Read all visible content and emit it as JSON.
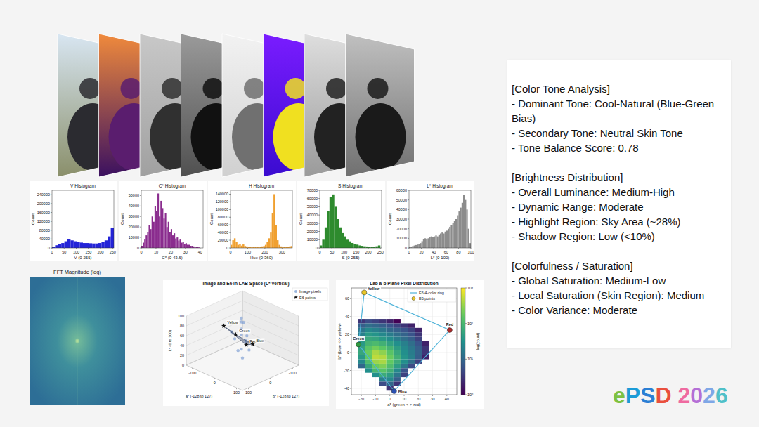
{
  "chart_data": [
    {
      "type": "histogram",
      "title": "V Histogram",
      "x_label": "V (0-255)",
      "y_label": "Count",
      "color": "#2424d8",
      "bins": [
        0,
        12.75,
        25.5,
        38.25,
        51,
        63.75,
        76.5,
        89.25,
        102,
        114.75,
        127.5,
        140.25,
        153,
        165.75,
        178.5,
        191.25,
        204,
        216.75,
        229.5,
        242.25,
        255
      ],
      "values": [
        4000,
        12000,
        18000,
        22000,
        30000,
        38000,
        34000,
        30000,
        26000,
        24000,
        22000,
        22000,
        21000,
        20000,
        20000,
        22000,
        26000,
        34000,
        52000,
        92000
      ],
      "xlim": [
        0,
        255
      ],
      "xticks": [
        0,
        50,
        100,
        150,
        200,
        250
      ],
      "ylim": [
        0,
        260000
      ],
      "yticks": [
        0,
        40000,
        80000,
        120000,
        160000,
        200000,
        240000
      ]
    },
    {
      "type": "histogram",
      "title": "C* Histogram",
      "x_label": "C* (0-43.6)",
      "y_label": "Count",
      "color": "#8a2c8e",
      "bins": [
        0,
        1,
        2,
        3,
        4,
        5,
        6,
        7,
        8,
        9,
        10,
        11,
        12,
        13,
        14,
        15,
        16,
        17,
        18,
        19,
        20,
        21,
        22,
        23,
        24,
        25,
        26,
        27,
        28,
        29,
        30,
        31,
        32,
        33,
        34,
        35,
        36,
        37,
        38,
        39,
        40
      ],
      "values": [
        2000,
        5000,
        8000,
        12000,
        15000,
        22000,
        18000,
        30000,
        25000,
        40000,
        35000,
        52000,
        30000,
        45000,
        38000,
        28000,
        33000,
        20000,
        25000,
        15000,
        18000,
        12000,
        14000,
        9000,
        10000,
        7000,
        8000,
        5000,
        6000,
        4000,
        4500,
        3000,
        3000,
        2000,
        2000,
        1500,
        1200,
        1000,
        800,
        500
      ],
      "xlim": [
        0,
        42
      ],
      "xticks": [
        0,
        10,
        20,
        30,
        40
      ],
      "ylim": [
        0,
        55000
      ],
      "yticks": [
        0,
        10000,
        20000,
        30000,
        40000,
        50000
      ]
    },
    {
      "type": "histogram",
      "title": "H Histogram",
      "x_label": "Hue (0-360)",
      "y_label": "Count",
      "color": "#f0a030",
      "bins": [
        0,
        10,
        20,
        30,
        40,
        50,
        60,
        70,
        80,
        90,
        100,
        110,
        120,
        130,
        140,
        150,
        160,
        170,
        180,
        190,
        200,
        210,
        220,
        230,
        240,
        250,
        260,
        270,
        280,
        290,
        300,
        310,
        320,
        330,
        340,
        350,
        360
      ],
      "values": [
        8000,
        20000,
        25000,
        15000,
        8000,
        10000,
        6000,
        9000,
        5000,
        4000,
        3000,
        3000,
        2000,
        2000,
        2000,
        3000,
        2000,
        3000,
        4000,
        5000,
        8000,
        15000,
        25000,
        40000,
        90000,
        140000,
        60000,
        20000,
        8000,
        4000,
        3000,
        3000,
        2000,
        3000,
        4000,
        5000
      ],
      "xlim": [
        0,
        360
      ],
      "xticks": [
        0,
        100,
        200,
        300
      ],
      "ylim": [
        0,
        150000
      ],
      "yticks": [
        0,
        20000,
        40000,
        60000,
        80000,
        100000,
        120000,
        140000
      ]
    },
    {
      "type": "histogram",
      "title": "S Histogram",
      "x_label": "S (0-255)",
      "y_label": "Count",
      "color": "#2e8b2e",
      "bins": [
        0,
        10,
        20,
        30,
        40,
        50,
        60,
        70,
        80,
        90,
        100,
        110,
        120,
        130,
        140,
        150,
        160,
        170,
        180,
        190,
        200,
        210,
        220,
        230,
        240,
        250
      ],
      "values": [
        3000,
        10000,
        25000,
        45000,
        62000,
        65000,
        50000,
        35000,
        25000,
        18000,
        14000,
        10000,
        8000,
        6000,
        5000,
        4000,
        3000,
        2500,
        2000,
        1800,
        1500,
        1200,
        1000,
        2000,
        3000
      ],
      "xlim": [
        0,
        255
      ],
      "xticks": [
        0,
        50,
        100,
        150,
        200,
        250
      ],
      "ylim": [
        0,
        70000
      ],
      "yticks": [
        0,
        10000,
        20000,
        30000,
        40000,
        50000,
        60000,
        70000
      ]
    },
    {
      "type": "histogram",
      "title": "L* Histogram",
      "x_label": "L* (0-100)",
      "y_label": "Count",
      "color": "#8c8c8c",
      "bins": [
        0,
        2.5,
        5,
        7.5,
        10,
        12.5,
        15,
        17.5,
        20,
        22.5,
        25,
        27.5,
        30,
        32.5,
        35,
        37.5,
        40,
        42.5,
        45,
        47.5,
        50,
        52.5,
        55,
        57.5,
        60,
        62.5,
        65,
        67.5,
        70,
        72.5,
        75,
        77.5,
        80,
        82.5,
        85,
        87.5,
        90,
        92.5,
        95,
        97.5,
        100
      ],
      "values": [
        1000,
        1500,
        2000,
        2500,
        3000,
        3500,
        4000,
        5000,
        7000,
        9000,
        10000,
        9000,
        10000,
        11000,
        12000,
        11000,
        12000,
        13000,
        12000,
        14000,
        15000,
        16000,
        15000,
        17000,
        18000,
        20000,
        22000,
        24000,
        26000,
        28000,
        30000,
        34000,
        38000,
        42000,
        47000,
        55000,
        50000,
        40000,
        20000,
        5000
      ],
      "xlim": [
        0,
        100
      ],
      "xticks": [
        0,
        20,
        40,
        60,
        80,
        100
      ],
      "ylim": [
        0,
        60000
      ],
      "yticks": [
        0,
        10000,
        20000,
        30000,
        40000,
        50000,
        60000
      ]
    },
    {
      "type": "image",
      "title": "FFT Magnitude (log)"
    },
    {
      "type": "scatter3d",
      "title": "Image and E6 in LAB Space (L* Vertical)",
      "x_label": "a* (-128 to 127)",
      "y_label": "b* (-128 to 127)",
      "z_label": "L* (0 to 100)",
      "xlim": [
        -128,
        127
      ],
      "ylim": [
        -128,
        127
      ],
      "zlim": [
        0,
        100
      ],
      "xticks": [
        -100,
        0,
        100
      ],
      "yticks": [
        -100,
        0,
        100
      ],
      "zticks": [
        0,
        20,
        40,
        60,
        80,
        100
      ],
      "legend": "upper right",
      "series": [
        {
          "name": "Image pixels",
          "color": "#6f95d0",
          "marker": "circle",
          "x": [
            -5,
            -10,
            0,
            5,
            -15,
            10,
            -5,
            15,
            -10,
            0,
            20,
            -20,
            5,
            0
          ],
          "y": [
            0,
            -5,
            5,
            10,
            20,
            -10,
            -20,
            20,
            10,
            -30,
            5,
            30,
            0,
            0
          ],
          "z": [
            95,
            85,
            75,
            65,
            55,
            60,
            45,
            40,
            30,
            25,
            50,
            70,
            88,
            15
          ]
        },
        {
          "name": "E6 points",
          "color": "#111111",
          "marker": "star",
          "x": [
            -18,
            42,
            3,
            -22
          ],
          "y": [
            67,
            25,
            -43,
            9
          ],
          "z": [
            90,
            55,
            35,
            60
          ],
          "labels": [
            "Yellow",
            "Red",
            "Blue",
            "Green"
          ]
        }
      ]
    },
    {
      "type": "scatter",
      "title": "Lab a-b Plane Pixel Distribution",
      "x_label": "a* (green <-> red)",
      "y_label": "b* (blue <-> yellow)",
      "xlim": [
        -27,
        47
      ],
      "xticks": [
        -20,
        -10,
        0,
        10,
        20,
        30,
        40
      ],
      "ylim": [
        -47,
        72
      ],
      "yticks": [
        -40,
        -20,
        0,
        20,
        40,
        60
      ],
      "legend": "upper right",
      "series": [
        {
          "name": "E6 4-color ring",
          "type": "line",
          "color": "#4fb3d9",
          "line_style": "solid",
          "x": [
            -18,
            42,
            3,
            -22,
            -18
          ],
          "y": [
            67,
            25,
            -43,
            9,
            67
          ]
        },
        {
          "name": "E6 points",
          "type": "scatter",
          "marker": "circle",
          "colors": [
            "#e8c72a",
            "#b02a2a",
            "#2a4fb0",
            "#2e9a3e"
          ],
          "x": [
            -18,
            42,
            3,
            -22
          ],
          "y": [
            67,
            25,
            -43,
            9
          ],
          "labels": [
            "Yellow",
            "Red",
            "Blue",
            "Green"
          ]
        }
      ],
      "pixels": {
        "x": [
          -20,
          -15,
          -10,
          -5,
          0,
          5,
          -20,
          -15,
          -10,
          -5,
          0,
          5,
          10,
          15,
          -20,
          -15,
          -10,
          -5,
          0,
          5,
          10,
          15,
          20,
          -20,
          -15,
          -10,
          -5,
          0,
          5,
          10,
          15,
          20,
          -20,
          -15,
          -10,
          -5,
          0,
          5,
          10,
          15,
          20,
          -20,
          -15,
          -10,
          -5,
          0,
          5,
          10,
          15,
          20,
          25,
          -20,
          -15,
          -10,
          -5,
          0,
          5,
          10,
          15,
          20,
          25,
          -20,
          -15,
          -10,
          -5,
          0,
          5,
          10,
          15,
          20,
          25,
          -20,
          -15,
          -10,
          -5,
          0,
          5,
          10,
          15,
          20,
          25,
          -20,
          -15,
          -10,
          -5,
          0,
          5,
          10,
          15,
          20,
          -20,
          -15,
          -10,
          -5,
          0,
          5,
          10,
          15,
          -15,
          -10,
          -5,
          0,
          5,
          10,
          -10,
          -5,
          0,
          5,
          10,
          -5,
          0,
          5,
          -5,
          0,
          5,
          0
        ],
        "y": [
          35,
          35,
          35,
          35,
          35,
          35,
          30,
          30,
          30,
          30,
          30,
          30,
          30,
          30,
          25,
          25,
          25,
          25,
          25,
          25,
          25,
          25,
          25,
          20,
          20,
          20,
          20,
          20,
          20,
          20,
          20,
          20,
          15,
          15,
          15,
          15,
          15,
          15,
          15,
          15,
          15,
          10,
          10,
          10,
          10,
          10,
          10,
          10,
          10,
          10,
          10,
          5,
          5,
          5,
          5,
          5,
          5,
          5,
          5,
          5,
          5,
          0,
          0,
          0,
          0,
          0,
          0,
          0,
          0,
          0,
          0,
          -5,
          -5,
          -5,
          -5,
          -5,
          -5,
          -5,
          -5,
          -5,
          -5,
          -10,
          -10,
          -10,
          -10,
          -10,
          -10,
          -10,
          -10,
          -10,
          -15,
          -15,
          -15,
          -15,
          -15,
          -15,
          -15,
          -15,
          -20,
          -20,
          -20,
          -20,
          -20,
          -20,
          -25,
          -25,
          -25,
          -25,
          -25,
          -30,
          -30,
          -30,
          -35,
          -35,
          -35,
          -40
        ],
        "counts": [
          3,
          5,
          4,
          3,
          2,
          1,
          8,
          12,
          10,
          8,
          6,
          4,
          3,
          2,
          15,
          25,
          20,
          15,
          10,
          8,
          6,
          4,
          2,
          20,
          40,
          35,
          25,
          18,
          12,
          9,
          6,
          3,
          30,
          60,
          55,
          40,
          28,
          18,
          12,
          8,
          4,
          40,
          90,
          110,
          80,
          50,
          30,
          20,
          12,
          6,
          2,
          50,
          150,
          220,
          160,
          90,
          45,
          25,
          15,
          8,
          3,
          60,
          200,
          400,
          300,
          150,
          60,
          30,
          18,
          9,
          3,
          40,
          180,
          500,
          450,
          200,
          80,
          35,
          20,
          8,
          2,
          25,
          120,
          350,
          400,
          180,
          70,
          30,
          12,
          4,
          10,
          60,
          200,
          250,
          120,
          45,
          15,
          5,
          30,
          100,
          150,
          80,
          25,
          6,
          30,
          70,
          45,
          15,
          4,
          20,
          25,
          8,
          5,
          10,
          3,
          3
        ]
      },
      "colorbar": {
        "label": "log(count)",
        "log": true,
        "lim": [
          1,
          1000
        ],
        "ticks": [
          {
            "value": 1,
            "label": "10⁰"
          },
          {
            "value": 10,
            "label": "10¹"
          },
          {
            "value": 100,
            "label": "10²"
          },
          {
            "value": 1000,
            "label": "10³"
          }
        ]
      }
    }
  ],
  "analysis": {
    "sections": [
      {
        "heading": "[Color Tone Analysis]",
        "items": [
          "- Dominant Tone: Cool-Natural (Blue-Green Bias)",
          "- Secondary Tone: Neutral Skin Tone",
          "- Tone Balance Score: 0.78"
        ]
      },
      {
        "heading": "[Brightness Distribution]",
        "items": [
          "- Overall Luminance: Medium-High",
          "- Dynamic Range: Moderate",
          "- Highlight Region: Sky Area (~28%)",
          "- Shadow Region: Low (<10%)"
        ]
      },
      {
        "heading": "[Colorfulness / Saturation]",
        "items": [
          "- Global Saturation: Medium-Low",
          "- Local Saturation (Skin Region): Medium",
          "- Color Variance: Moderate"
        ]
      }
    ]
  },
  "logo": {
    "text": "ePSD 2026"
  }
}
